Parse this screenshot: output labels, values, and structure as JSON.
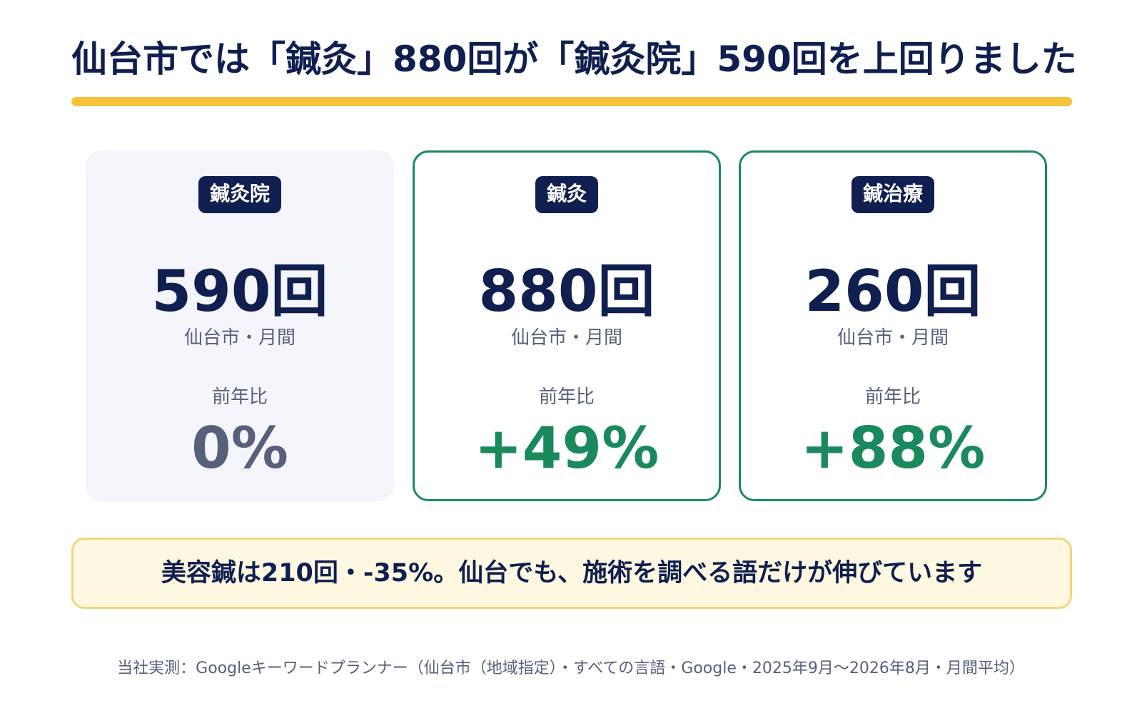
{
  "title": "仙台市では「鍼灸」880回が「鍼灸院」590回を上回りました",
  "cards": [
    {
      "badge": "鍼灸院",
      "value": "590回",
      "sub": "仙台市・月間",
      "yoy_label": "前年比",
      "yoy": "0%"
    },
    {
      "badge": "鍼灸",
      "value": "880回",
      "sub": "仙台市・月間",
      "yoy_label": "前年比",
      "yoy": "+49%"
    },
    {
      "badge": "鍼治療",
      "value": "260回",
      "sub": "仙台市・月間",
      "yoy_label": "前年比",
      "yoy": "+88%"
    }
  ],
  "callout": "美容鍼は210回・-35%。仙台でも、施術を調べる語だけが伸びています",
  "source": "当社実測：Googleキーワードプランナー（仙台市（地域指定）・すべての言語・Google・2025年9月〜2026年8月・月間平均）",
  "colors": {
    "navy": "#0f1f4f",
    "accent_yellow": "#f5c33b",
    "positive_green": "#1a8a5e",
    "neutral_gray": "#56607a",
    "callout_bg": "#fff8e1"
  }
}
